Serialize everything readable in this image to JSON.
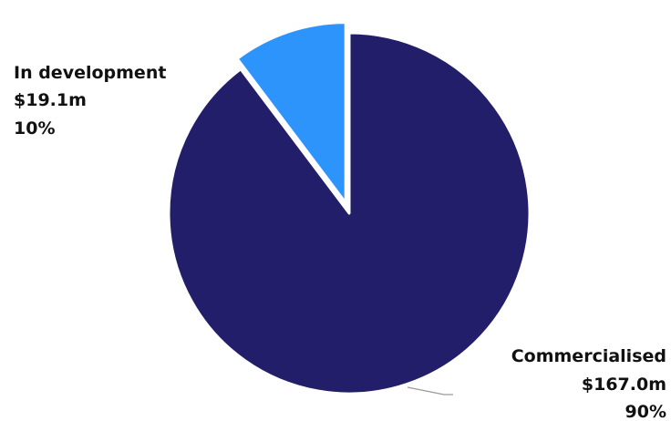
{
  "chart_data": {
    "type": "pie",
    "slices": [
      {
        "name": "Commercialised",
        "value_label": "$167.0m",
        "value": 167.0,
        "pct_label": "90%",
        "color": "#231E6A"
      },
      {
        "name": "In development",
        "value_label": "$19.1m",
        "value": 19.1,
        "pct_label": "10%",
        "color": "#2D94FB"
      }
    ],
    "legend": "none",
    "exploded_slice": "In development"
  }
}
